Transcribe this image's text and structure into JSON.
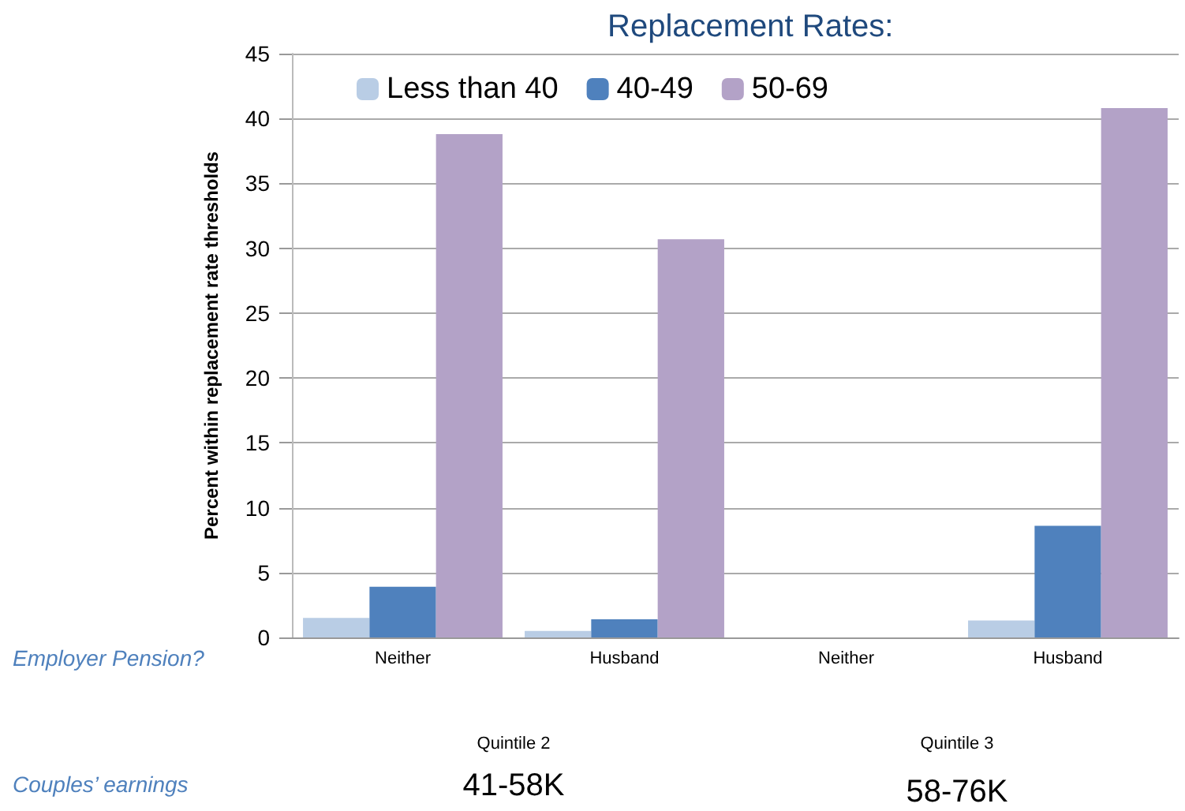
{
  "chart_data": {
    "type": "bar",
    "title": "Replacement Rates:",
    "ylabel": "Percent within replacement rate thresholds",
    "categories": [
      "Neither",
      "Husband",
      "Neither",
      "Husband"
    ],
    "series": [
      {
        "name": "Less than 40",
        "color": "#b9cde5",
        "values": [
          1.5,
          0.5,
          0,
          1.3
        ]
      },
      {
        "name": "40-49",
        "color": "#4f81bd",
        "values": [
          3.9,
          1.4,
          0,
          8.6
        ]
      },
      {
        "name": "50-69",
        "color": "#b3a2c7",
        "values": [
          38.8,
          30.7,
          0,
          40.8
        ]
      }
    ],
    "ylim": [
      0,
      45
    ],
    "yticks": [
      0,
      5,
      10,
      15,
      20,
      25,
      30,
      35,
      40,
      45
    ],
    "grid": "y",
    "legend": "top",
    "annotations": [
      "Employer Pension?",
      "Quintile 2",
      "Quintile 3",
      "Couples’ earnings",
      "41-58K",
      "58-76K"
    ]
  }
}
